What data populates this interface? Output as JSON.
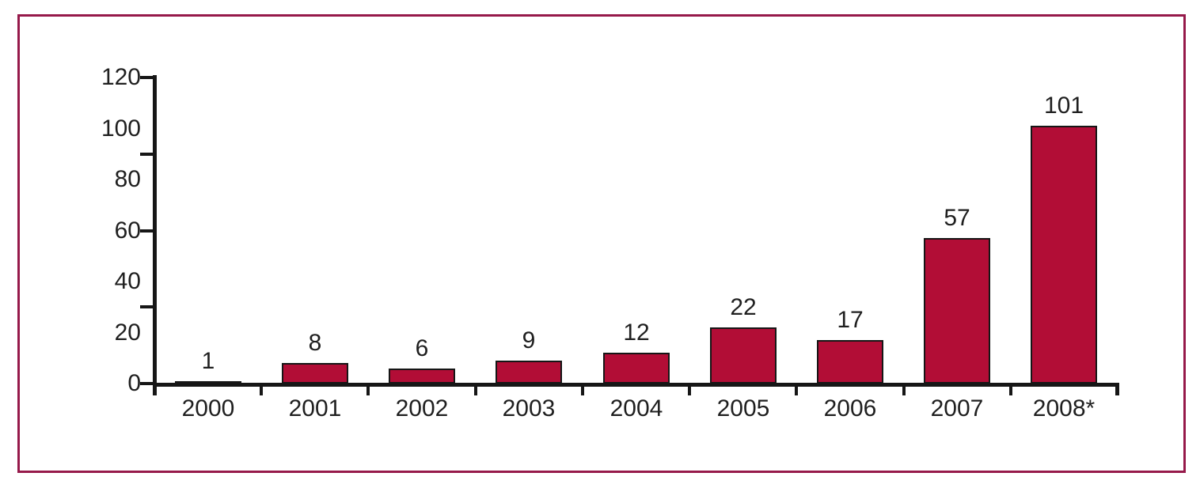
{
  "figure": {
    "frame_border_color": "#96194a",
    "background_color": "#ffffff"
  },
  "chart_data": {
    "type": "bar",
    "title": "",
    "xlabel": "",
    "ylabel": "",
    "categories": [
      "2000",
      "2001",
      "2002",
      "2003",
      "2004",
      "2005",
      "2006",
      "2007",
      "2008*"
    ],
    "values": [
      1,
      8,
      6,
      9,
      12,
      22,
      17,
      57,
      101
    ],
    "bar_labels": [
      "1",
      "8",
      "6",
      "9",
      "12",
      "22",
      "17",
      "57",
      "101"
    ],
    "ylim": [
      0,
      120
    ],
    "y_axis_labels": [
      "0",
      "20",
      "40",
      "60",
      "80",
      "100",
      "120"
    ],
    "y_axis_label_values": [
      0,
      20,
      40,
      60,
      80,
      100,
      120
    ],
    "y_tick_mark_values": [
      0,
      30,
      60,
      90,
      120
    ],
    "grid": false,
    "legend": "none",
    "bar_color": "#b20d36",
    "bar_border_color": "#161616",
    "axis_color": "#161616",
    "text_color": "#1f1f1f"
  }
}
